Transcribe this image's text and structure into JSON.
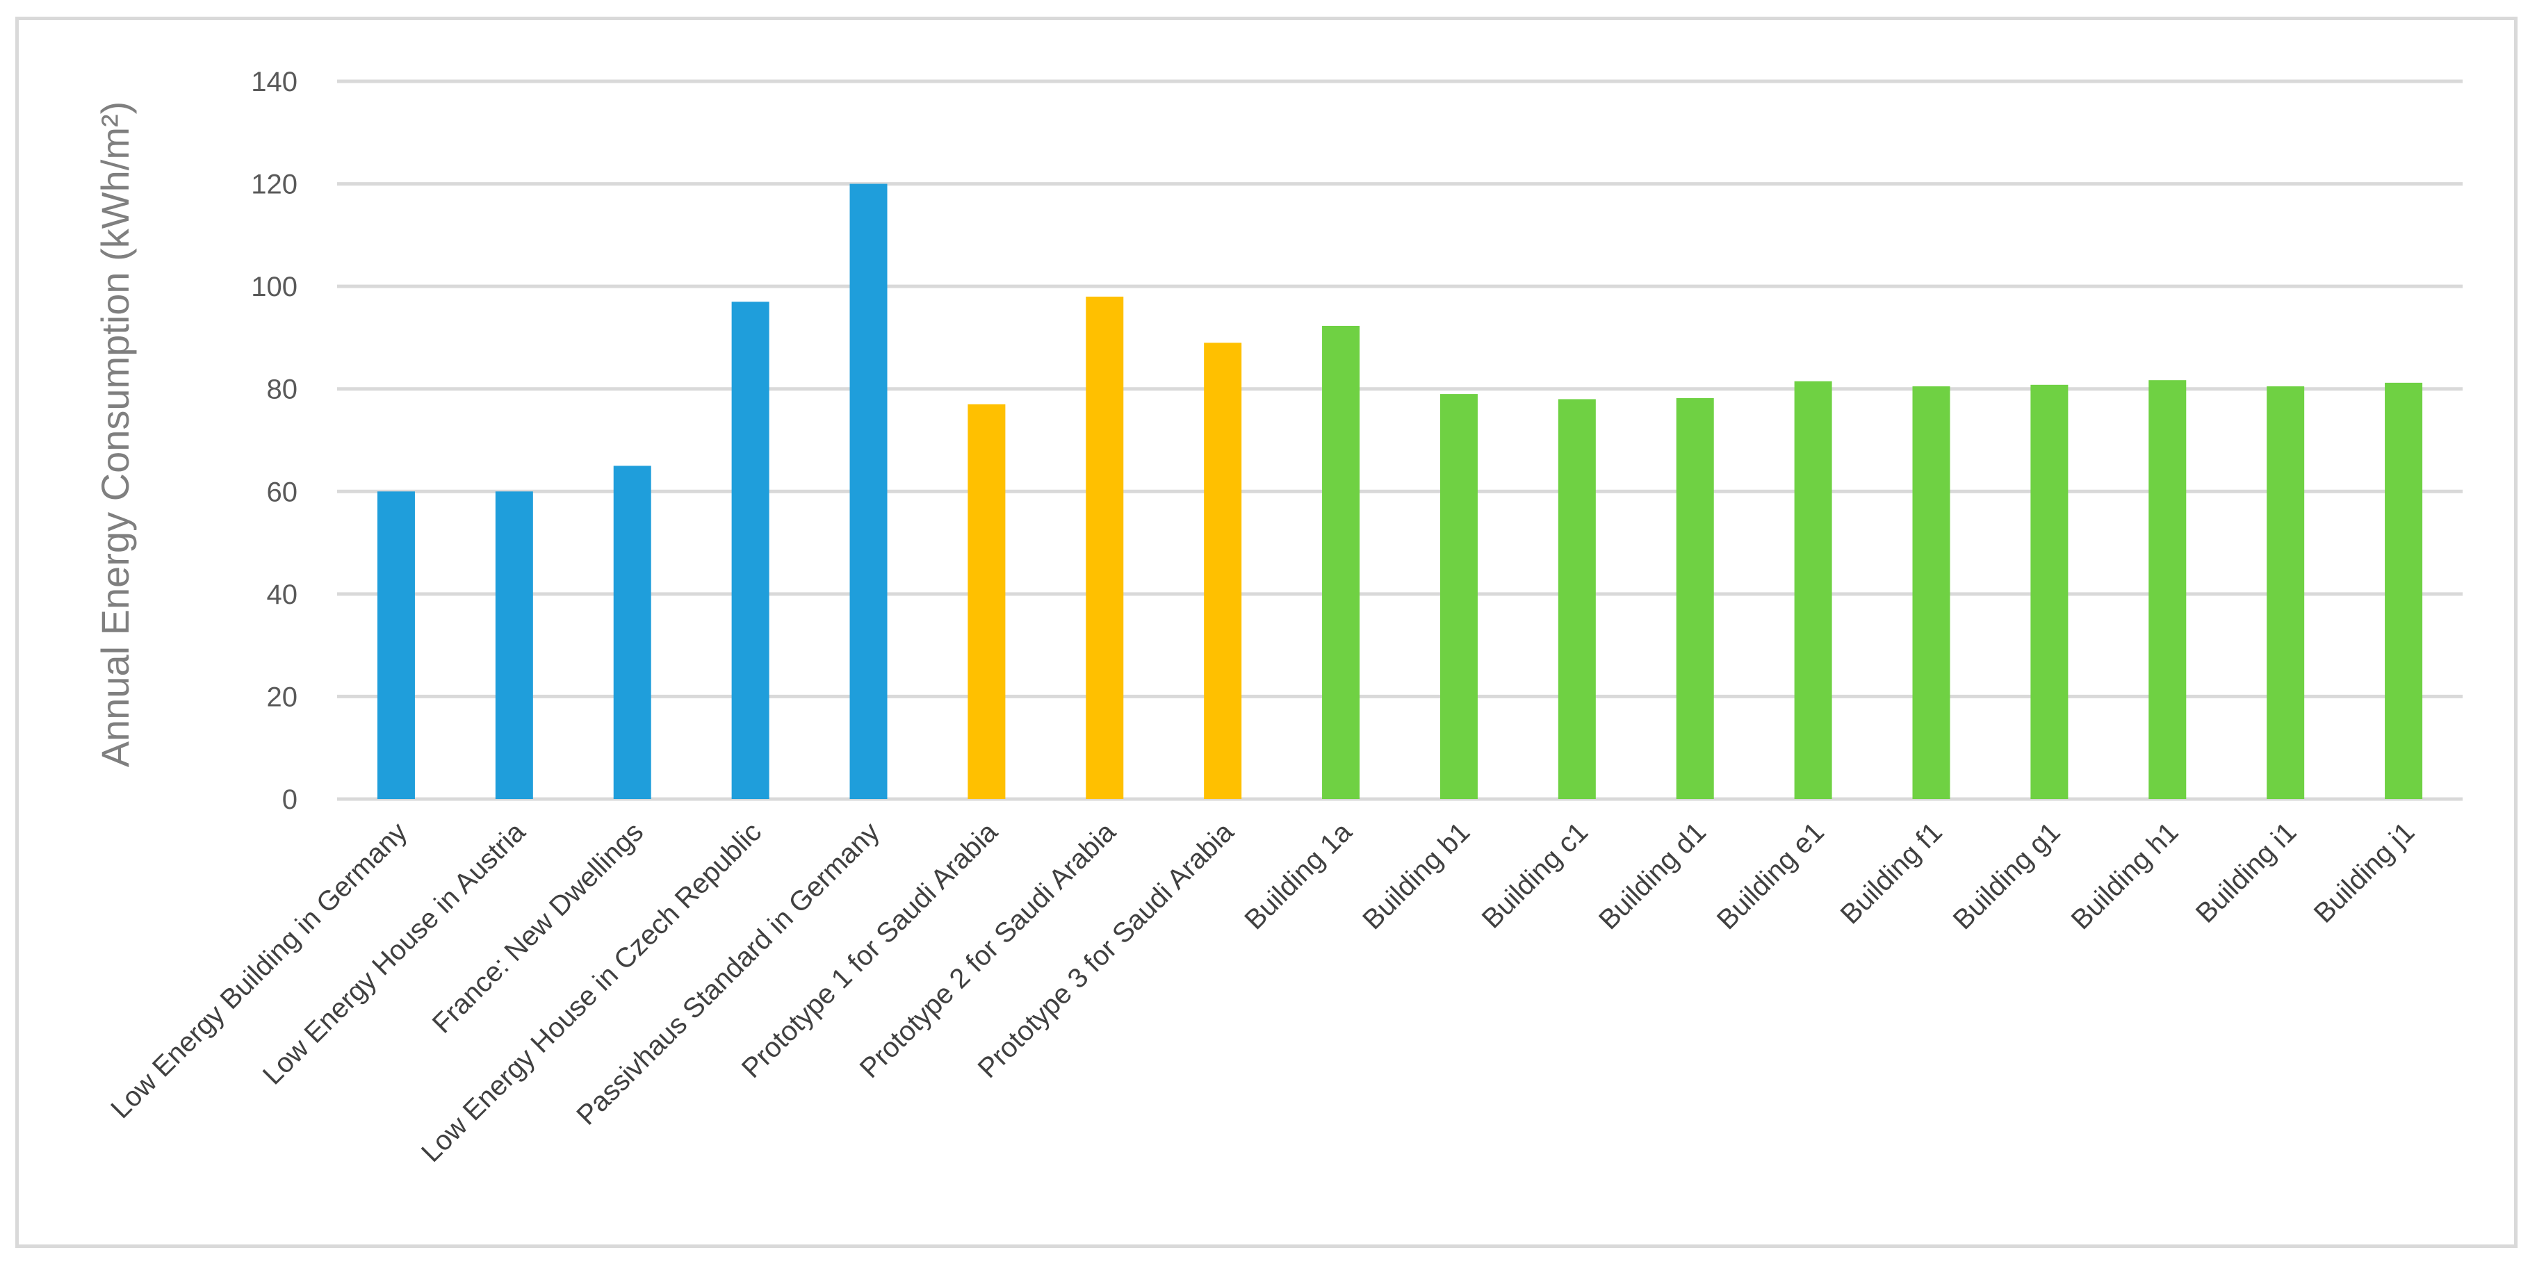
{
  "chart_data": {
    "type": "bar",
    "title": "",
    "xlabel": "",
    "ylabel": "Annual Energy Consumption (kWh/m²)",
    "ylim": [
      0,
      140
    ],
    "yticks": [
      0,
      20,
      40,
      60,
      80,
      100,
      120,
      140
    ],
    "grid": true,
    "legend": "none",
    "categories": [
      "Low Energy Building in Germany",
      "Low Energy House in Austria",
      "France: New Dwellings",
      "Low Energy House in Czech Republic",
      "Passivhaus Standard in Germany",
      "Prototype 1 for Saudi Arabia",
      "Prototype 2 for Saudi Arabia",
      "Prototype 3 for Saudi Arabia",
      "Building 1a",
      "Building b1",
      "Building c1",
      "Building d1",
      "Building e1",
      "Building f1",
      "Building g1",
      "Building h1",
      "Building i1",
      "Building j1"
    ],
    "values": [
      60,
      60,
      65,
      97,
      120,
      77,
      98,
      89,
      92.3,
      79,
      78,
      78.2,
      81.5,
      80.5,
      80.8,
      81.7,
      80.5,
      81.2
    ],
    "colors": [
      "#1f9edb",
      "#1f9edb",
      "#1f9edb",
      "#1f9edb",
      "#1f9edb",
      "#ffc000",
      "#ffc000",
      "#ffc000",
      "#6fd143",
      "#6fd143",
      "#6fd143",
      "#6fd143",
      "#6fd143",
      "#6fd143",
      "#6fd143",
      "#6fd143",
      "#6fd143",
      "#6fd143"
    ],
    "gridline_color": "#d9d9d9"
  }
}
